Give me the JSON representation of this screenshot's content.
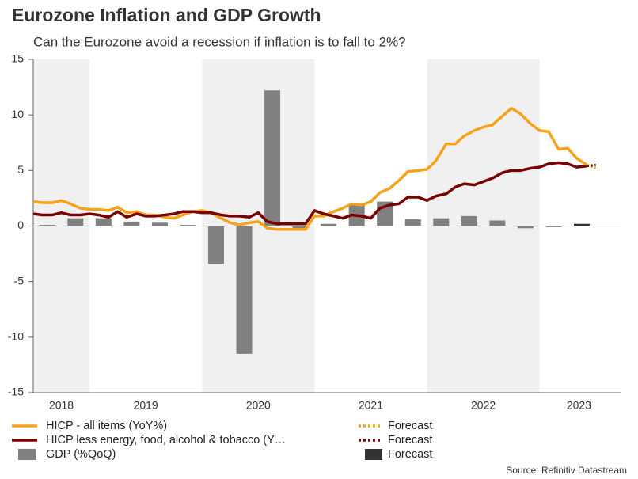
{
  "chart_data": {
    "type": "combo",
    "title": "Eurozone Inflation and GDP Growth",
    "subtitle": "Can the Eurozone avoid a recession if inflation is to fall to 2%?",
    "source": "Source: Refinitiv Datastream",
    "xlim": [
      2018.5,
      2023.72
    ],
    "xticks": [
      {
        "value": 2018.75,
        "label": "2018"
      },
      {
        "value": 2019.5,
        "label": "2019"
      },
      {
        "value": 2020.5,
        "label": "2020"
      },
      {
        "value": 2021.5,
        "label": "2021"
      },
      {
        "value": 2022.5,
        "label": "2022"
      },
      {
        "value": 2023.35,
        "label": "2023"
      }
    ],
    "shaded_bands": [
      [
        2018.5,
        2019
      ],
      [
        2020,
        2021
      ],
      [
        2022,
        2023
      ]
    ],
    "ylim": [
      -15,
      15
    ],
    "yticks": [
      -15,
      -10,
      -5,
      0,
      5,
      10,
      15
    ],
    "series": [
      {
        "name": "HICP - all items (YoY%)",
        "type": "line",
        "style": "solid",
        "color": "#f7a21b",
        "x": [
          2018.5,
          2018.58,
          2018.67,
          2018.75,
          2018.83,
          2018.92,
          2019,
          2019.08,
          2019.17,
          2019.25,
          2019.33,
          2019.42,
          2019.5,
          2019.58,
          2019.67,
          2019.75,
          2019.83,
          2019.92,
          2020,
          2020.08,
          2020.17,
          2020.25,
          2020.33,
          2020.42,
          2020.5,
          2020.58,
          2020.67,
          2020.75,
          2020.83,
          2020.92,
          2021,
          2021.08,
          2021.17,
          2021.25,
          2021.33,
          2021.42,
          2021.5,
          2021.58,
          2021.67,
          2021.75,
          2021.83,
          2021.92,
          2022,
          2022.08,
          2022.17,
          2022.25,
          2022.33,
          2022.42,
          2022.5,
          2022.58,
          2022.67,
          2022.75,
          2022.83,
          2022.92,
          2023,
          2023.08,
          2023.17,
          2023.25,
          2023.33,
          2023.42
        ],
        "values": [
          2.2,
          2.1,
          2.1,
          2.3,
          2.0,
          1.6,
          1.5,
          1.5,
          1.4,
          1.7,
          1.2,
          1.3,
          1.0,
          1.0,
          0.8,
          0.7,
          1.0,
          1.3,
          1.4,
          1.2,
          0.7,
          0.3,
          0.1,
          0.3,
          0.4,
          -0.2,
          -0.3,
          -0.3,
          -0.3,
          -0.3,
          0.9,
          0.9,
          1.3,
          1.6,
          2.0,
          1.9,
          2.2,
          3.0,
          3.4,
          4.1,
          4.9,
          5.0,
          5.1,
          5.9,
          7.4,
          7.4,
          8.1,
          8.6,
          8.9,
          9.1,
          9.9,
          10.6,
          10.1,
          9.2,
          8.6,
          8.5,
          6.9,
          7.0,
          6.1,
          5.5
        ]
      },
      {
        "name": "HICP less energy, food, alcohol & tobacco (Y…",
        "type": "line",
        "style": "solid",
        "color": "#7a0000",
        "x": [
          2018.5,
          2018.58,
          2018.67,
          2018.75,
          2018.83,
          2018.92,
          2019,
          2019.08,
          2019.17,
          2019.25,
          2019.33,
          2019.42,
          2019.5,
          2019.58,
          2019.67,
          2019.75,
          2019.83,
          2019.92,
          2020,
          2020.08,
          2020.17,
          2020.25,
          2020.33,
          2020.42,
          2020.5,
          2020.58,
          2020.67,
          2020.75,
          2020.83,
          2020.92,
          2021,
          2021.08,
          2021.17,
          2021.25,
          2021.33,
          2021.42,
          2021.5,
          2021.58,
          2021.67,
          2021.75,
          2021.83,
          2021.92,
          2022,
          2022.08,
          2022.17,
          2022.25,
          2022.33,
          2022.42,
          2022.5,
          2022.58,
          2022.67,
          2022.75,
          2022.83,
          2022.92,
          2023,
          2023.08,
          2023.17,
          2023.25,
          2023.33,
          2023.42
        ],
        "values": [
          1.1,
          1.0,
          1.0,
          1.2,
          1.0,
          1.0,
          1.1,
          1.0,
          0.8,
          1.3,
          0.8,
          1.1,
          0.9,
          0.9,
          1.0,
          1.1,
          1.3,
          1.3,
          1.2,
          1.2,
          1.0,
          0.9,
          0.9,
          0.8,
          1.2,
          0.4,
          0.2,
          0.2,
          0.2,
          0.2,
          1.4,
          1.1,
          0.9,
          0.7,
          1.0,
          0.9,
          0.7,
          1.6,
          1.9,
          2.0,
          2.6,
          2.6,
          2.3,
          2.7,
          2.9,
          3.5,
          3.8,
          3.7,
          4.0,
          4.3,
          4.8,
          5.0,
          5.0,
          5.2,
          5.3,
          5.6,
          5.7,
          5.6,
          5.3,
          5.4
        ]
      },
      {
        "name": "GDP (%QoQ)",
        "type": "bar",
        "color": "#808080",
        "x": [
          2018.625,
          2018.875,
          2019.125,
          2019.375,
          2019.625,
          2019.875,
          2020.125,
          2020.375,
          2020.625,
          2020.875,
          2021.125,
          2021.375,
          2021.625,
          2021.875,
          2022.125,
          2022.375,
          2022.625,
          2022.875,
          2023.125
        ],
        "values": [
          0.1,
          0.7,
          0.7,
          0.4,
          0.3,
          0.1,
          -3.4,
          -11.5,
          12.2,
          -0.2,
          0.2,
          2.0,
          2.2,
          0.6,
          0.7,
          0.9,
          0.5,
          -0.2,
          -0.1
        ]
      },
      {
        "name": "Forecast",
        "type": "line",
        "style": "dotted",
        "color": "#f7a21b",
        "x": [
          2023.42,
          2023.5
        ],
        "values": [
          5.5,
          5.2
        ]
      },
      {
        "name": "Forecast",
        "type": "line",
        "style": "dotted",
        "color": "#7a0000",
        "x": [
          2023.42,
          2023.5
        ],
        "values": [
          5.4,
          5.5
        ]
      },
      {
        "name": "Forecast",
        "type": "bar",
        "color": "#333333",
        "x": [
          2023.375
        ],
        "values": [
          0.2
        ]
      }
    ]
  }
}
